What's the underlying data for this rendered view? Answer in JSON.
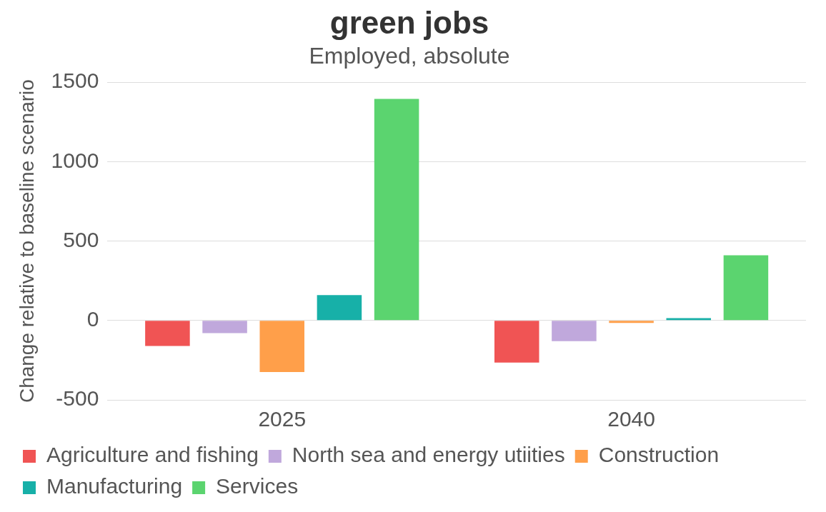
{
  "chart_data": {
    "type": "bar",
    "title": "green jobs",
    "subtitle": "Employed, absolute",
    "ylabel": "Change relative to baseline scenario",
    "categories": [
      "2025",
      "2040"
    ],
    "series": [
      {
        "name": "Agriculture and fishing",
        "color": "#f05454",
        "values": [
          -160,
          -265
        ]
      },
      {
        "name": "North sea and energy utiities",
        "color": "#c0a8dc",
        "values": [
          -80,
          -130
        ]
      },
      {
        "name": "Construction",
        "color": "#ff9f4a",
        "values": [
          -325,
          -15
        ]
      },
      {
        "name": "Manufacturing",
        "color": "#17b0a8",
        "values": [
          160,
          15
        ]
      },
      {
        "name": "Services",
        "color": "#5bd46f",
        "values": [
          1395,
          410
        ]
      }
    ],
    "ylim": [
      -500,
      1500
    ],
    "yticks": [
      -500,
      0,
      500,
      1000,
      1500
    ],
    "grid": "y",
    "legend": "bottom"
  }
}
